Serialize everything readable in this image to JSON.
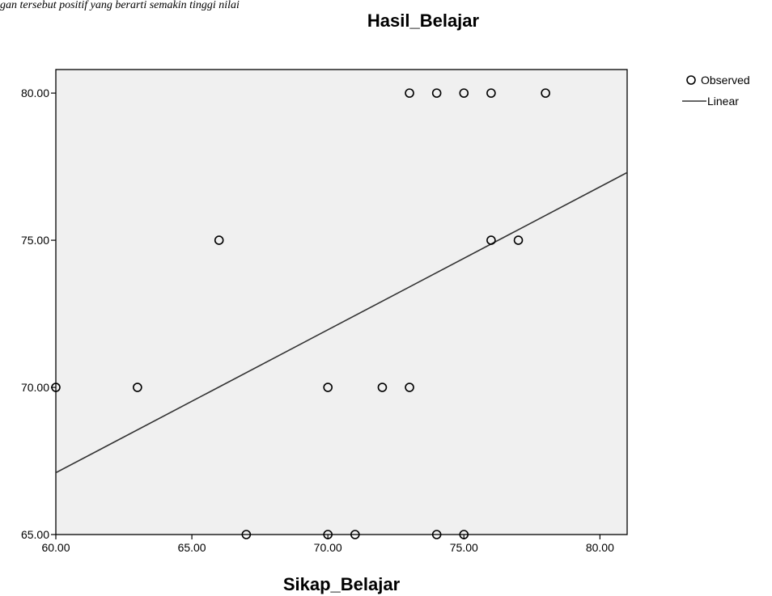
{
  "caption": "gan tersebut positif yang berarti semakin tinggi nilai",
  "chart_data": {
    "type": "scatter",
    "title": "Hasil_Belajar",
    "xlabel": "Sikap_Belajar",
    "ylabel": "",
    "xlim": [
      60,
      81
    ],
    "ylim": [
      65,
      80.8
    ],
    "x_ticks": [
      "60.00",
      "65.00",
      "70.00",
      "75.00",
      "80.00"
    ],
    "y_ticks": [
      "65.00",
      "70.00",
      "75.00",
      "80.00"
    ],
    "grid": false,
    "legend_position": "top-right",
    "series": [
      {
        "name": "Observed",
        "kind": "markers",
        "points": [
          {
            "x": 60,
            "y": 70
          },
          {
            "x": 63,
            "y": 70
          },
          {
            "x": 66,
            "y": 75
          },
          {
            "x": 67,
            "y": 65
          },
          {
            "x": 70,
            "y": 70
          },
          {
            "x": 70,
            "y": 65
          },
          {
            "x": 71,
            "y": 65
          },
          {
            "x": 72,
            "y": 70
          },
          {
            "x": 73,
            "y": 70
          },
          {
            "x": 73,
            "y": 80
          },
          {
            "x": 74,
            "y": 80
          },
          {
            "x": 74,
            "y": 65
          },
          {
            "x": 75,
            "y": 80
          },
          {
            "x": 75,
            "y": 65
          },
          {
            "x": 76,
            "y": 80
          },
          {
            "x": 76,
            "y": 75
          },
          {
            "x": 77,
            "y": 75
          },
          {
            "x": 78,
            "y": 80
          }
        ]
      },
      {
        "name": "Linear",
        "kind": "line",
        "points": [
          {
            "x": 60,
            "y": 67.1
          },
          {
            "x": 81,
            "y": 77.3
          }
        ]
      }
    ]
  }
}
